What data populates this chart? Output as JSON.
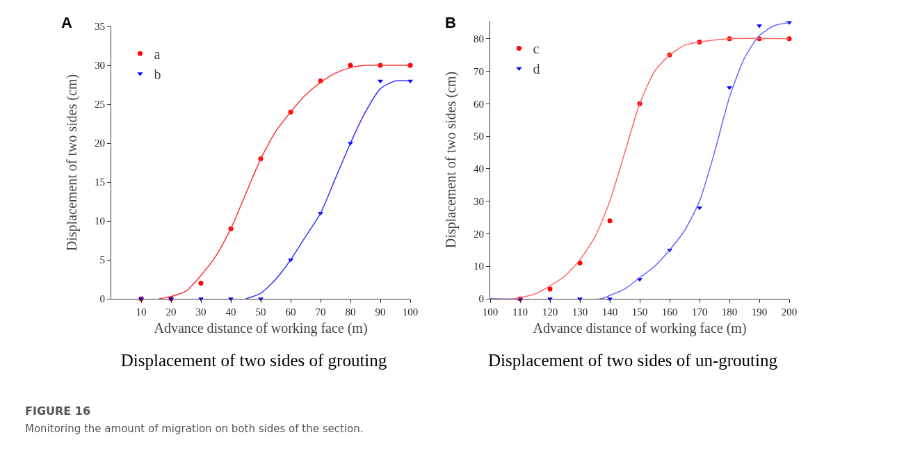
{
  "chart_data": [
    {
      "type": "scatter",
      "title": "Displacement of two sides of grouting",
      "xlabel": "Advance distance of working face (m)",
      "ylabel": "Displacement of two sides (cm)",
      "annotations": [
        "A",
        "FIGURE 16",
        "Monitoring the amount of migration on both sides of the section."
      ],
      "xlim": [
        0,
        100
      ],
      "ylim": [
        0,
        35
      ],
      "xticks": [
        10,
        20,
        30,
        40,
        50,
        60,
        70,
        80,
        90,
        100
      ],
      "yticks": [
        0,
        5,
        10,
        15,
        20,
        25,
        30,
        35
      ],
      "legend": "top left",
      "grid": false,
      "series": [
        {
          "name": "a",
          "marker": "circle",
          "color": "#ff0000",
          "x": [
            10,
            20,
            30,
            40,
            50,
            60,
            70,
            80,
            90,
            100
          ],
          "values": [
            0,
            0,
            2,
            9,
            18,
            24,
            28,
            30,
            30,
            30
          ]
        },
        {
          "name": "b",
          "marker": "triangle",
          "color": "#0000ff",
          "x": [
            10,
            20,
            30,
            40,
            50,
            60,
            70,
            80,
            90,
            100
          ],
          "values": [
            0,
            0,
            0,
            0,
            0,
            5,
            11,
            20,
            28,
            28
          ]
        },
        {
          "type": "line",
          "color": "#ff3333",
          "x": [
            16,
            20,
            25,
            30,
            35,
            40,
            45,
            50,
            55,
            60,
            65,
            70,
            75,
            80,
            85,
            90,
            100
          ],
          "values": [
            0,
            0.3,
            1,
            3,
            5.5,
            9,
            13.5,
            18,
            21.5,
            24,
            26.2,
            27.8,
            29,
            29.7,
            30,
            30,
            30
          ]
        },
        {
          "type": "line",
          "color": "#3333ff",
          "x": [
            45,
            50,
            55,
            60,
            65,
            70,
            75,
            80,
            85,
            90,
            95,
            100
          ],
          "values": [
            0,
            0.7,
            2.5,
            5,
            8,
            11,
            15.5,
            20,
            24,
            27,
            28,
            28
          ]
        }
      ]
    },
    {
      "type": "scatter",
      "title": "Displacement of two sides of un-grouting",
      "xlabel": "Advance distance of working face (m)",
      "ylabel": "Displacement of two sides (cm)",
      "annotations": [
        "B"
      ],
      "xlim": [
        100,
        200
      ],
      "ylim": [
        0,
        85.5
      ],
      "xticks": [
        100,
        110,
        120,
        130,
        140,
        150,
        160,
        170,
        180,
        190,
        200
      ],
      "yticks": [
        0,
        10,
        20,
        30,
        40,
        50,
        60,
        70,
        80
      ],
      "legend": "top left",
      "grid": false,
      "series": [
        {
          "name": "c",
          "marker": "circle",
          "color": "#ff0000",
          "x": [
            110,
            120,
            130,
            140,
            150,
            160,
            170,
            180,
            190,
            200
          ],
          "values": [
            0,
            3,
            11,
            24,
            60,
            75,
            79,
            80,
            80,
            80
          ]
        },
        {
          "name": "d",
          "marker": "triangle",
          "color": "#0000ff",
          "x": [
            110,
            120,
            130,
            140,
            150,
            160,
            170,
            180,
            190,
            200
          ],
          "values": [
            0,
            0,
            0,
            0,
            6,
            15,
            28,
            65,
            84,
            85
          ]
        },
        {
          "type": "line",
          "color": "#ff6666",
          "x": [
            100,
            108,
            115,
            120,
            125,
            130,
            135,
            140,
            145,
            150,
            155,
            160,
            165,
            170,
            180,
            200
          ],
          "values": [
            0,
            0,
            1.5,
            4,
            7,
            12,
            19,
            30,
            45,
            60,
            70,
            75,
            78,
            79,
            80,
            80
          ]
        },
        {
          "type": "line",
          "color": "#6666ff",
          "x": [
            100,
            137,
            140,
            145,
            150,
            155,
            160,
            165,
            170,
            175,
            180,
            185,
            190,
            195,
            200
          ],
          "values": [
            0,
            0,
            1,
            3,
            6.5,
            10,
            15,
            21,
            30,
            45,
            62,
            74,
            81,
            84,
            85
          ]
        }
      ]
    }
  ]
}
